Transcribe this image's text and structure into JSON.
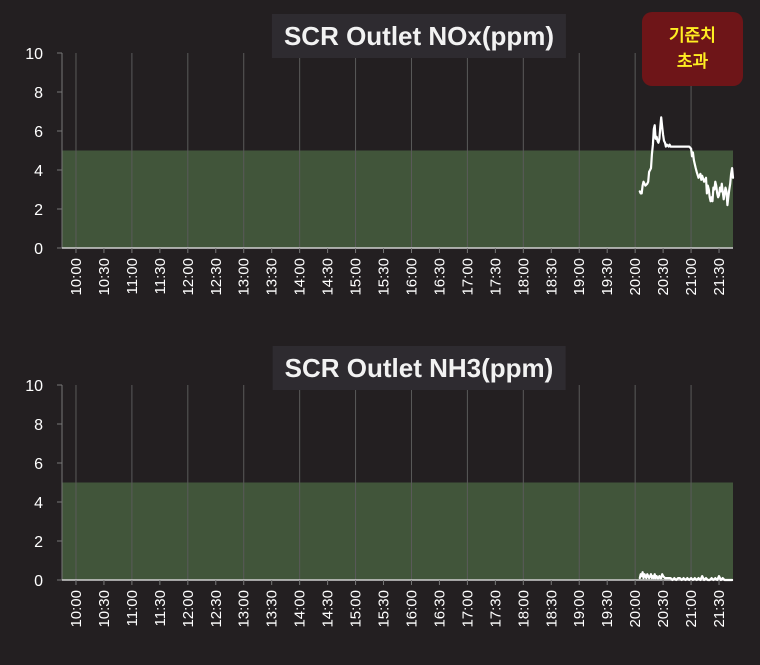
{
  "alert_badge": {
    "line1": "기준치",
    "line2": "초과"
  },
  "colors": {
    "background": "#231f21",
    "threshold_band": "#41553a",
    "line": "#ffffff",
    "badge_bg": "#6e1518",
    "badge_text": "#ffee22"
  },
  "chart_data": [
    {
      "type": "line",
      "title": "SCR Outlet NOx(ppm)",
      "xlabel": "",
      "ylabel": "",
      "ylim": [
        0,
        10
      ],
      "xlim": [
        "9:45",
        "21:45"
      ],
      "y_ticks": [
        "0",
        "2",
        "4",
        "6",
        "8",
        "10"
      ],
      "x_ticks": [
        "10:00",
        "10:30",
        "11:00",
        "11:30",
        "12:00",
        "12:30",
        "13:00",
        "13:30",
        "14:00",
        "14:30",
        "15:00",
        "15:30",
        "16:00",
        "16:30",
        "17:00",
        "17:30",
        "18:00",
        "18:30",
        "19:00",
        "19:30",
        "20:00",
        "20:30",
        "21:00",
        "21:30"
      ],
      "threshold_band": [
        0,
        5
      ],
      "grid": "vertical",
      "series": [
        {
          "x": [
            "20:05",
            "20:06",
            "20:07",
            "20:08",
            "20:09",
            "20:11",
            "20:13",
            "20:14",
            "20:15",
            "20:16",
            "20:17",
            "20:18",
            "20:19",
            "20:20",
            "20:21",
            "20:22",
            "20:23",
            "20:24",
            "20:25",
            "20:26",
            "20:27",
            "20:28",
            "20:29",
            "20:30",
            "20:31",
            "20:32",
            "20:33",
            "20:34",
            "20:36",
            "20:37",
            "20:38",
            "20:40",
            "20:42",
            "20:44",
            "20:46",
            "20:48",
            "20:50",
            "20:52",
            "20:54",
            "20:56",
            "20:58",
            "21:00",
            "21:01",
            "21:02",
            "21:03",
            "21:04",
            "21:05",
            "21:06",
            "21:08",
            "21:10",
            "21:11",
            "21:12",
            "21:14",
            "21:16",
            "21:17",
            "21:18",
            "21:19",
            "21:20",
            "21:21",
            "21:22",
            "21:23",
            "21:24",
            "21:25",
            "21:26",
            "21:27",
            "21:28",
            "21:29",
            "21:30",
            "21:31",
            "21:32",
            "21:33",
            "21:34",
            "21:35",
            "21:36",
            "21:37",
            "21:38",
            "21:39",
            "21:40",
            "21:41",
            "21:42",
            "21:43",
            "21:44",
            "21:45"
          ],
          "y": [
            2.9,
            2.8,
            2.8,
            3.2,
            3.4,
            3.2,
            3.3,
            3.4,
            3.9,
            4.0,
            4.1,
            4.8,
            5.3,
            6.1,
            6.3,
            5.6,
            5.7,
            5.5,
            5.4,
            5.6,
            6.2,
            6.7,
            6.2,
            5.8,
            5.5,
            5.4,
            5.2,
            5.3,
            5.2,
            5.3,
            5.2,
            5.2,
            5.2,
            5.2,
            5.2,
            5.2,
            5.2,
            5.2,
            5.2,
            5.2,
            5.2,
            5.1,
            4.7,
            4.9,
            4.5,
            4.3,
            4.1,
            3.9,
            3.6,
            3.8,
            3.5,
            3.7,
            3.4,
            3.6,
            2.8,
            3.2,
            3.0,
            2.6,
            2.4,
            2.6,
            2.4,
            3.1,
            3.0,
            3.4,
            3.2,
            2.8,
            2.6,
            2.7,
            3.1,
            2.9,
            3.3,
            2.9,
            2.5,
            2.8,
            3.1,
            2.9,
            2.2,
            2.6,
            3.0,
            3.3,
            3.8,
            4.1,
            3.6
          ]
        }
      ]
    },
    {
      "type": "line",
      "title": "SCR Outlet NH3(ppm)",
      "xlabel": "",
      "ylabel": "",
      "ylim": [
        0,
        10
      ],
      "xlim": [
        "9:45",
        "21:45"
      ],
      "y_ticks": [
        "0",
        "2",
        "4",
        "6",
        "8",
        "10"
      ],
      "x_ticks": [
        "10:00",
        "10:30",
        "11:00",
        "11:30",
        "12:00",
        "12:30",
        "13:00",
        "13:30",
        "14:00",
        "14:30",
        "15:00",
        "15:30",
        "16:00",
        "16:30",
        "17:00",
        "17:30",
        "18:00",
        "18:30",
        "19:00",
        "19:30",
        "20:00",
        "20:30",
        "21:00",
        "21:30"
      ],
      "threshold_band": [
        0,
        5
      ],
      "grid": "vertical",
      "series": [
        {
          "x": [
            "20:05",
            "20:06",
            "20:07",
            "20:08",
            "20:09",
            "20:10",
            "20:11",
            "20:12",
            "20:13",
            "20:14",
            "20:15",
            "20:16",
            "20:17",
            "20:18",
            "20:19",
            "20:20",
            "20:21",
            "20:22",
            "20:23",
            "20:24",
            "20:25",
            "20:26",
            "20:27",
            "20:28",
            "20:29",
            "20:30",
            "20:32",
            "20:34",
            "20:36",
            "20:38",
            "20:40",
            "20:42",
            "20:44",
            "20:46",
            "20:48",
            "20:50",
            "20:52",
            "20:54",
            "20:56",
            "20:58",
            "21:00",
            "21:02",
            "21:04",
            "21:06",
            "21:08",
            "21:10",
            "21:12",
            "21:14",
            "21:16",
            "21:18",
            "21:20",
            "21:22",
            "21:24",
            "21:26",
            "21:28",
            "21:30",
            "21:32",
            "21:34",
            "21:36",
            "21:38",
            "21:40",
            "21:42",
            "21:44"
          ],
          "y": [
            0.1,
            0.3,
            0.2,
            0.4,
            0.1,
            0.3,
            0.2,
            0.1,
            0.3,
            0.2,
            0.1,
            0.2,
            0.3,
            0.1,
            0.2,
            0.1,
            0.3,
            0.1,
            0.2,
            0.1,
            0.1,
            0.2,
            0.1,
            0.1,
            0.3,
            0.2,
            0.1,
            0.1,
            0.1,
            0.1,
            0.0,
            0.1,
            0.0,
            0.1,
            0.1,
            0.0,
            0.1,
            0.0,
            0.1,
            0.0,
            0.1,
            0.0,
            0.1,
            0.0,
            0.1,
            0.0,
            0.2,
            0.0,
            0.1,
            0.0,
            0.0,
            0.1,
            0.0,
            0.1,
            0.0,
            0.2,
            0.0,
            0.1,
            0.0,
            0.0,
            0.0,
            0.0,
            0.0
          ]
        }
      ]
    }
  ]
}
